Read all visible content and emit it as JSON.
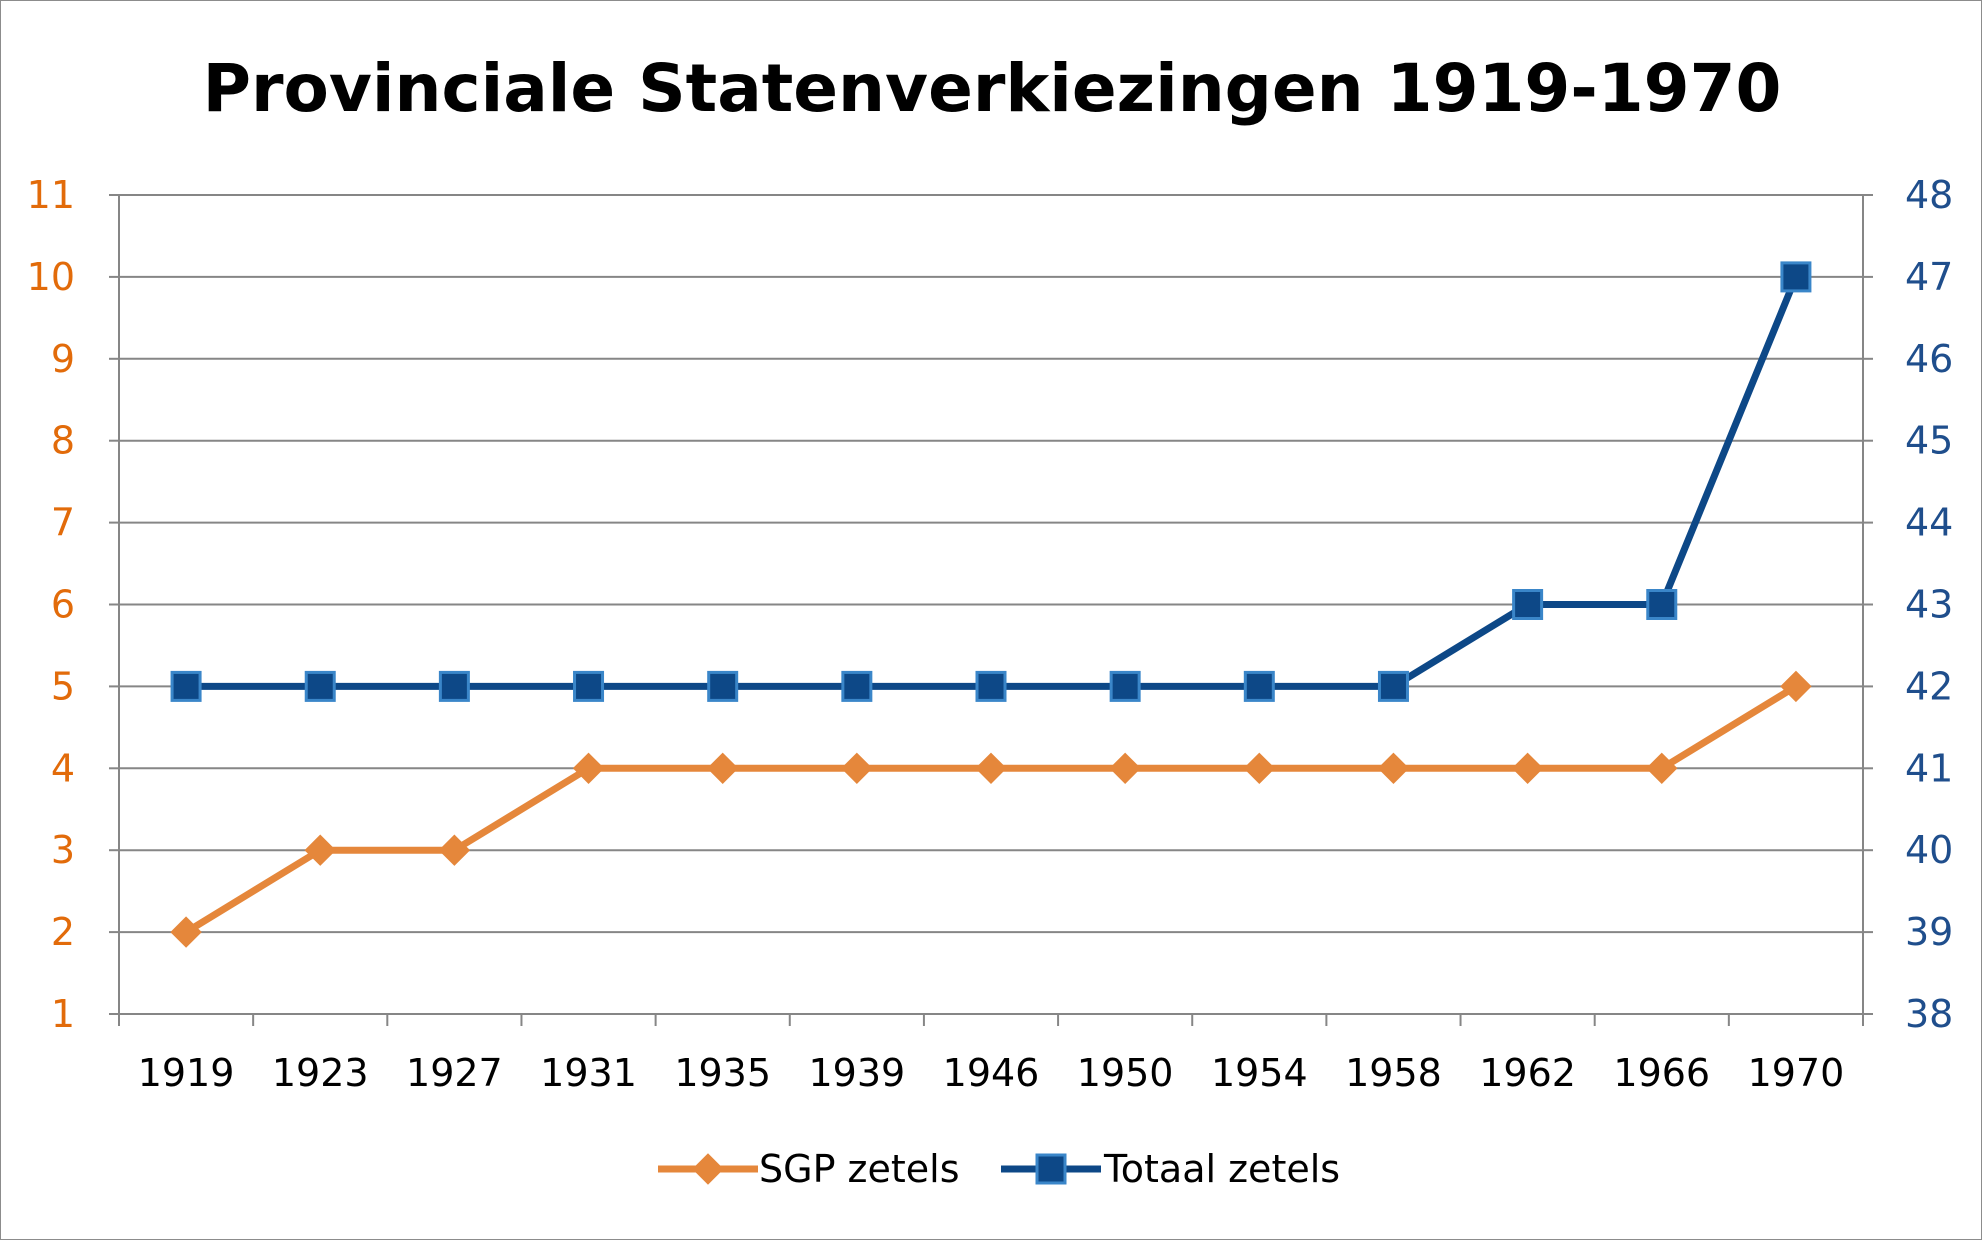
{
  "chart_data": {
    "type": "line",
    "title": "Provinciale Statenverkiezingen 1919-1970",
    "categories": [
      "1919",
      "1923",
      "1927",
      "1931",
      "1935",
      "1939",
      "1946",
      "1950",
      "1954",
      "1958",
      "1962",
      "1966",
      "1970"
    ],
    "series": [
      {
        "name": "SGP zetels",
        "axis": "left",
        "color": "#e5873b",
        "marker": "diamond",
        "values": [
          2,
          3,
          3,
          4,
          4,
          4,
          4,
          4,
          4,
          4,
          4,
          4,
          5
        ]
      },
      {
        "name": "Totaal zetels",
        "axis": "right",
        "color": "#0d4887",
        "marker": "square",
        "values": [
          42,
          42,
          42,
          42,
          42,
          42,
          42,
          42,
          42,
          42,
          43,
          43,
          47
        ]
      }
    ],
    "y_left": {
      "range": [
        1,
        11
      ],
      "ticks": [
        "1",
        "2",
        "3",
        "4",
        "5",
        "6",
        "7",
        "8",
        "9",
        "10",
        "11"
      ],
      "tick_color": "#e26b0a"
    },
    "y_right": {
      "range": [
        38,
        48
      ],
      "ticks": [
        "38",
        "39",
        "40",
        "41",
        "42",
        "43",
        "44",
        "45",
        "46",
        "47",
        "48"
      ],
      "tick_color": "#1f4e8c"
    },
    "grid": true,
    "legend_position": "bottom"
  }
}
